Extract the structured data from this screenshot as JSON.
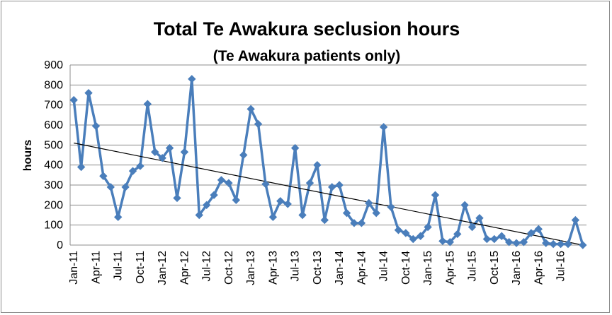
{
  "chart_data": {
    "type": "line",
    "title": "Total Te Awakura seclusion hours",
    "subtitle": "(Te Awakura patients only)",
    "xlabel": "",
    "ylabel": "hours",
    "ylim": [
      0,
      900
    ],
    "yticks": [
      0,
      100,
      200,
      300,
      400,
      500,
      600,
      700,
      800,
      900
    ],
    "grid": true,
    "legend": "none",
    "tick_labels": [
      "Jan-11",
      "Apr-11",
      "Jul-11",
      "Oct-11",
      "Jan-12",
      "Apr-12",
      "Jul-12",
      "Oct-12",
      "Jan-13",
      "Apr-13",
      "Jul-13",
      "Oct-13",
      "Jan-14",
      "Apr-14",
      "Jul-14",
      "Oct-14",
      "Jan-15",
      "Apr-15",
      "Jul-15",
      "Oct-15",
      "Jan-16",
      "Apr-16",
      "Jul-16"
    ],
    "x": [
      "Jan-11",
      "Feb-11",
      "Mar-11",
      "Apr-11",
      "May-11",
      "Jun-11",
      "Jul-11",
      "Aug-11",
      "Sep-11",
      "Oct-11",
      "Nov-11",
      "Dec-11",
      "Jan-12",
      "Feb-12",
      "Mar-12",
      "Apr-12",
      "May-12",
      "Jun-12",
      "Jul-12",
      "Aug-12",
      "Sep-12",
      "Oct-12",
      "Nov-12",
      "Dec-12",
      "Jan-13",
      "Feb-13",
      "Mar-13",
      "Apr-13",
      "May-13",
      "Jun-13",
      "Jul-13",
      "Aug-13",
      "Sep-13",
      "Oct-13",
      "Nov-13",
      "Dec-13",
      "Jan-14",
      "Feb-14",
      "Mar-14",
      "Apr-14",
      "May-14",
      "Jun-14",
      "Jul-14",
      "Aug-14",
      "Sep-14",
      "Oct-14",
      "Nov-14",
      "Dec-14",
      "Jan-15",
      "Feb-15",
      "Mar-15",
      "Apr-15",
      "May-15",
      "Jun-15",
      "Jul-15",
      "Aug-15",
      "Sep-15",
      "Oct-15",
      "Nov-15",
      "Dec-15",
      "Jan-16",
      "Feb-16",
      "Mar-16",
      "Apr-16",
      "May-16",
      "Jun-16",
      "Jul-16",
      "Aug-16",
      "Sep-16",
      "Oct-16"
    ],
    "series": [
      {
        "name": "",
        "color": "#4a7ebb",
        "marker": "diamond",
        "values": [
          725,
          390,
          760,
          595,
          345,
          290,
          140,
          290,
          370,
          395,
          705,
          465,
          435,
          485,
          235,
          465,
          830,
          150,
          200,
          250,
          325,
          310,
          225,
          450,
          680,
          605,
          305,
          140,
          220,
          205,
          485,
          150,
          310,
          400,
          125,
          290,
          300,
          160,
          110,
          110,
          210,
          160,
          590,
          190,
          75,
          60,
          30,
          45,
          90,
          250,
          20,
          15,
          55,
          200,
          90,
          135,
          30,
          30,
          45,
          15,
          10,
          15,
          60,
          80,
          10,
          5,
          5,
          5,
          125,
          0
        ]
      }
    ],
    "trendline": {
      "type": "linear",
      "color": "#000000",
      "y_start": 510,
      "y_end": 0
    }
  }
}
